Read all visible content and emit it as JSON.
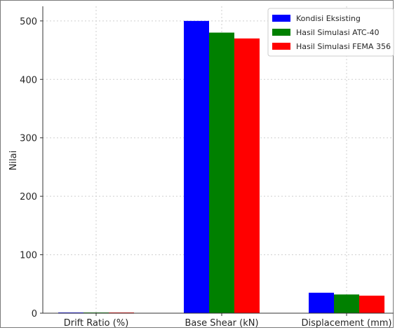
{
  "chart_data": {
    "type": "bar",
    "title": "",
    "xlabel": "",
    "ylabel": "Nilai",
    "categories": [
      "Drift Ratio (%)",
      "Base Shear (kN)",
      "Displacement (mm)"
    ],
    "series": [
      {
        "name": "Kondisi Eksisting",
        "color": "#0000ff",
        "values": [
          1.2,
          500,
          35
        ]
      },
      {
        "name": "Hasil Simulasi ATC-40",
        "color": "#008000",
        "values": [
          1.0,
          480,
          32
        ]
      },
      {
        "name": "Hasil Simulasi FEMA 356",
        "color": "#ff0000",
        "values": [
          0.9,
          470,
          30
        ]
      }
    ],
    "ylim": [
      0,
      525
    ],
    "yticks": [
      0,
      100,
      200,
      300,
      400,
      500
    ],
    "grid": true,
    "legend": "top-right"
  }
}
